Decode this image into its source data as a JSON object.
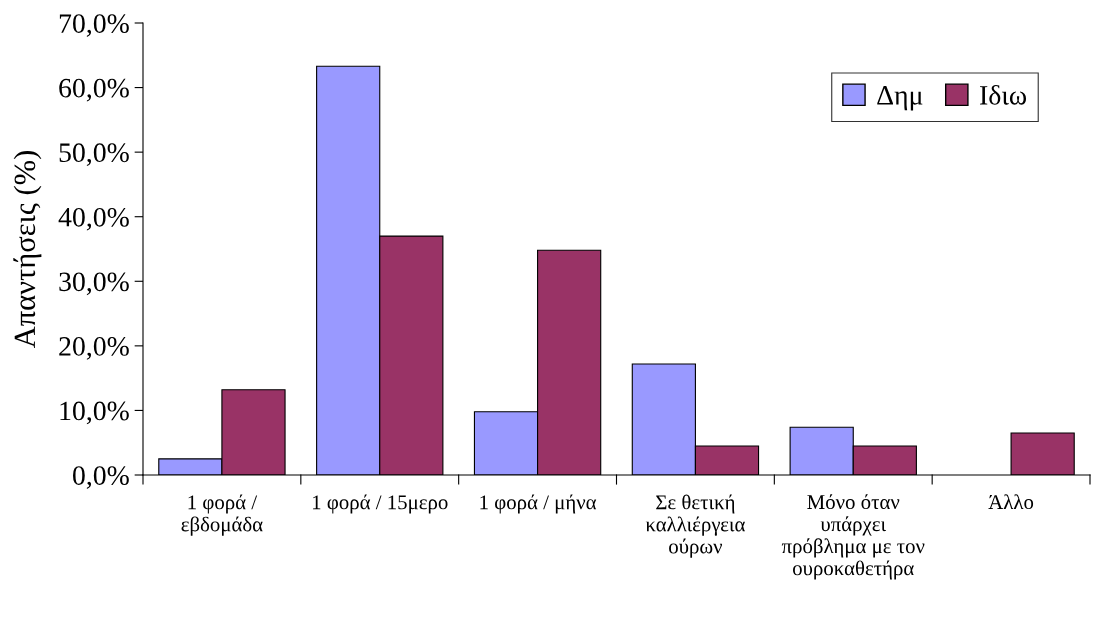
{
  "chart_data": {
    "type": "bar",
    "ylabel": "Απαντήσεις (%)",
    "categories": [
      "1 φορά / εβδομάδα",
      "1 φορά / 15μερο",
      "1 φορά / μήνα",
      "Σε θετική καλλιέργεια ούρων",
      "Μόνο όταν υπάρχει πρόβλημα με τον ουροκαθετήρα",
      "Άλλο"
    ],
    "series": [
      {
        "name": "Δημ",
        "color": "#9999ff",
        "values": [
          2.5,
          63.3,
          9.8,
          17.2,
          7.4,
          null
        ]
      },
      {
        "name": "Ιδιω",
        "color": "#993366",
        "values": [
          13.2,
          37.0,
          34.8,
          4.5,
          4.5,
          6.5
        ]
      }
    ],
    "ylim": [
      0,
      70
    ],
    "yticks": [
      {
        "value": 0,
        "label": "0,0%"
      },
      {
        "value": 10,
        "label": "10,0%"
      },
      {
        "value": 20,
        "label": "20,0%"
      },
      {
        "value": 30,
        "label": "30,0%"
      },
      {
        "value": 40,
        "label": "40,0%"
      },
      {
        "value": 50,
        "label": "50,0%"
      },
      {
        "value": 60,
        "label": "60,0%"
      },
      {
        "value": 70,
        "label": "70,0%"
      }
    ],
    "grid": false,
    "legend": "top right"
  }
}
